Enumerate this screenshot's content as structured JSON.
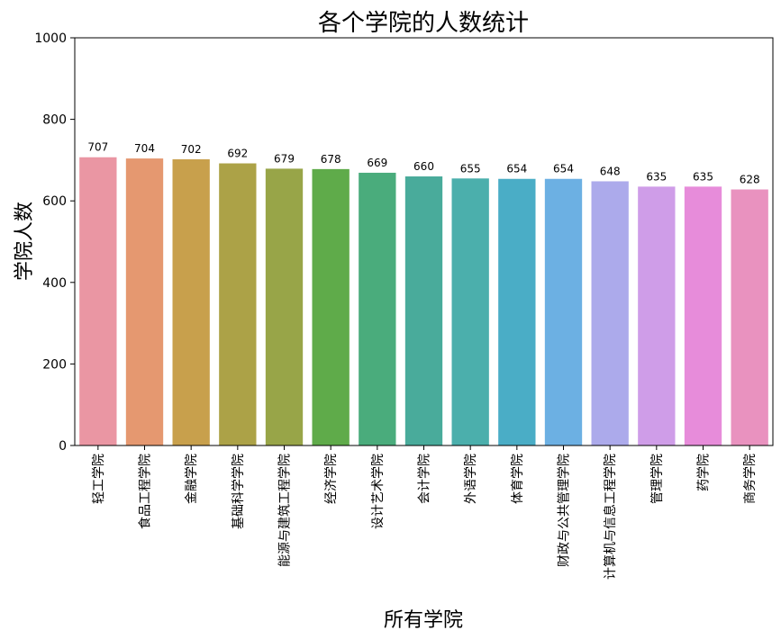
{
  "chart_data": {
    "type": "bar",
    "title": "各个学院的人数统计",
    "xlabel": "所有学院",
    "ylabel": "学院人数",
    "ylim": [
      0,
      1000
    ],
    "yticks": [
      0,
      200,
      400,
      600,
      800,
      1000
    ],
    "grid": false,
    "categories": [
      "轻工学院",
      "食品工程学院",
      "金融学院",
      "基础科学学院",
      "能源与建筑工程学院",
      "经济学院",
      "设计艺术学院",
      "会计学院",
      "外语学院",
      "体育学院",
      "财政与公共管理学院",
      "计算机与信息工程学院",
      "管理学院",
      "药学院",
      "商务学院"
    ],
    "values": [
      707,
      704,
      702,
      692,
      679,
      678,
      669,
      660,
      655,
      654,
      654,
      648,
      635,
      635,
      628
    ],
    "colors": [
      "#ea96a3",
      "#e59870",
      "#c8a04c",
      "#aca247",
      "#98a548",
      "#5fab4a",
      "#4aac7c",
      "#49ab9b",
      "#4bafac",
      "#4aadc6",
      "#6cb0e3",
      "#acaaeb",
      "#cf9de8",
      "#e78cda",
      "#e992bf"
    ]
  }
}
